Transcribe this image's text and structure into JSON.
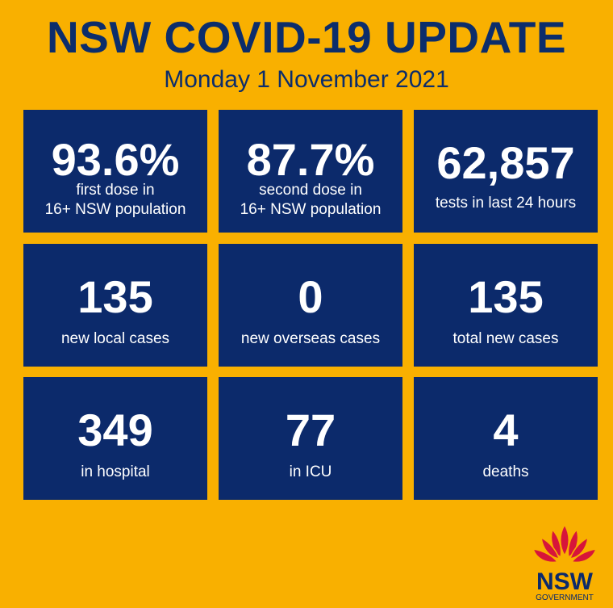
{
  "header": {
    "title": "NSW COVID-19 UPDATE",
    "date": "Monday 1 November 2021"
  },
  "stats": [
    {
      "value": "93.6%",
      "label": [
        "first dose in",
        "16+ NSW population"
      ]
    },
    {
      "value": "87.7%",
      "label": [
        "second dose in",
        "16+ NSW population"
      ]
    },
    {
      "value": "62,857",
      "label": [
        "tests in last 24 hours"
      ]
    },
    {
      "value": "135",
      "label": [
        "new local cases"
      ]
    },
    {
      "value": "0",
      "label": [
        "new overseas  cases"
      ]
    },
    {
      "value": "135",
      "label": [
        "total new cases"
      ]
    },
    {
      "value": "349",
      "label": [
        "in hospital"
      ]
    },
    {
      "value": "77",
      "label": [
        "in ICU"
      ]
    },
    {
      "value": "4",
      "label": [
        "deaths"
      ]
    }
  ],
  "logo": {
    "text": "NSW",
    "subtext": "GOVERNMENT"
  },
  "colors": {
    "background": "#f9b000",
    "navy": "#0c2a6b",
    "waratah": "#d7153a"
  }
}
